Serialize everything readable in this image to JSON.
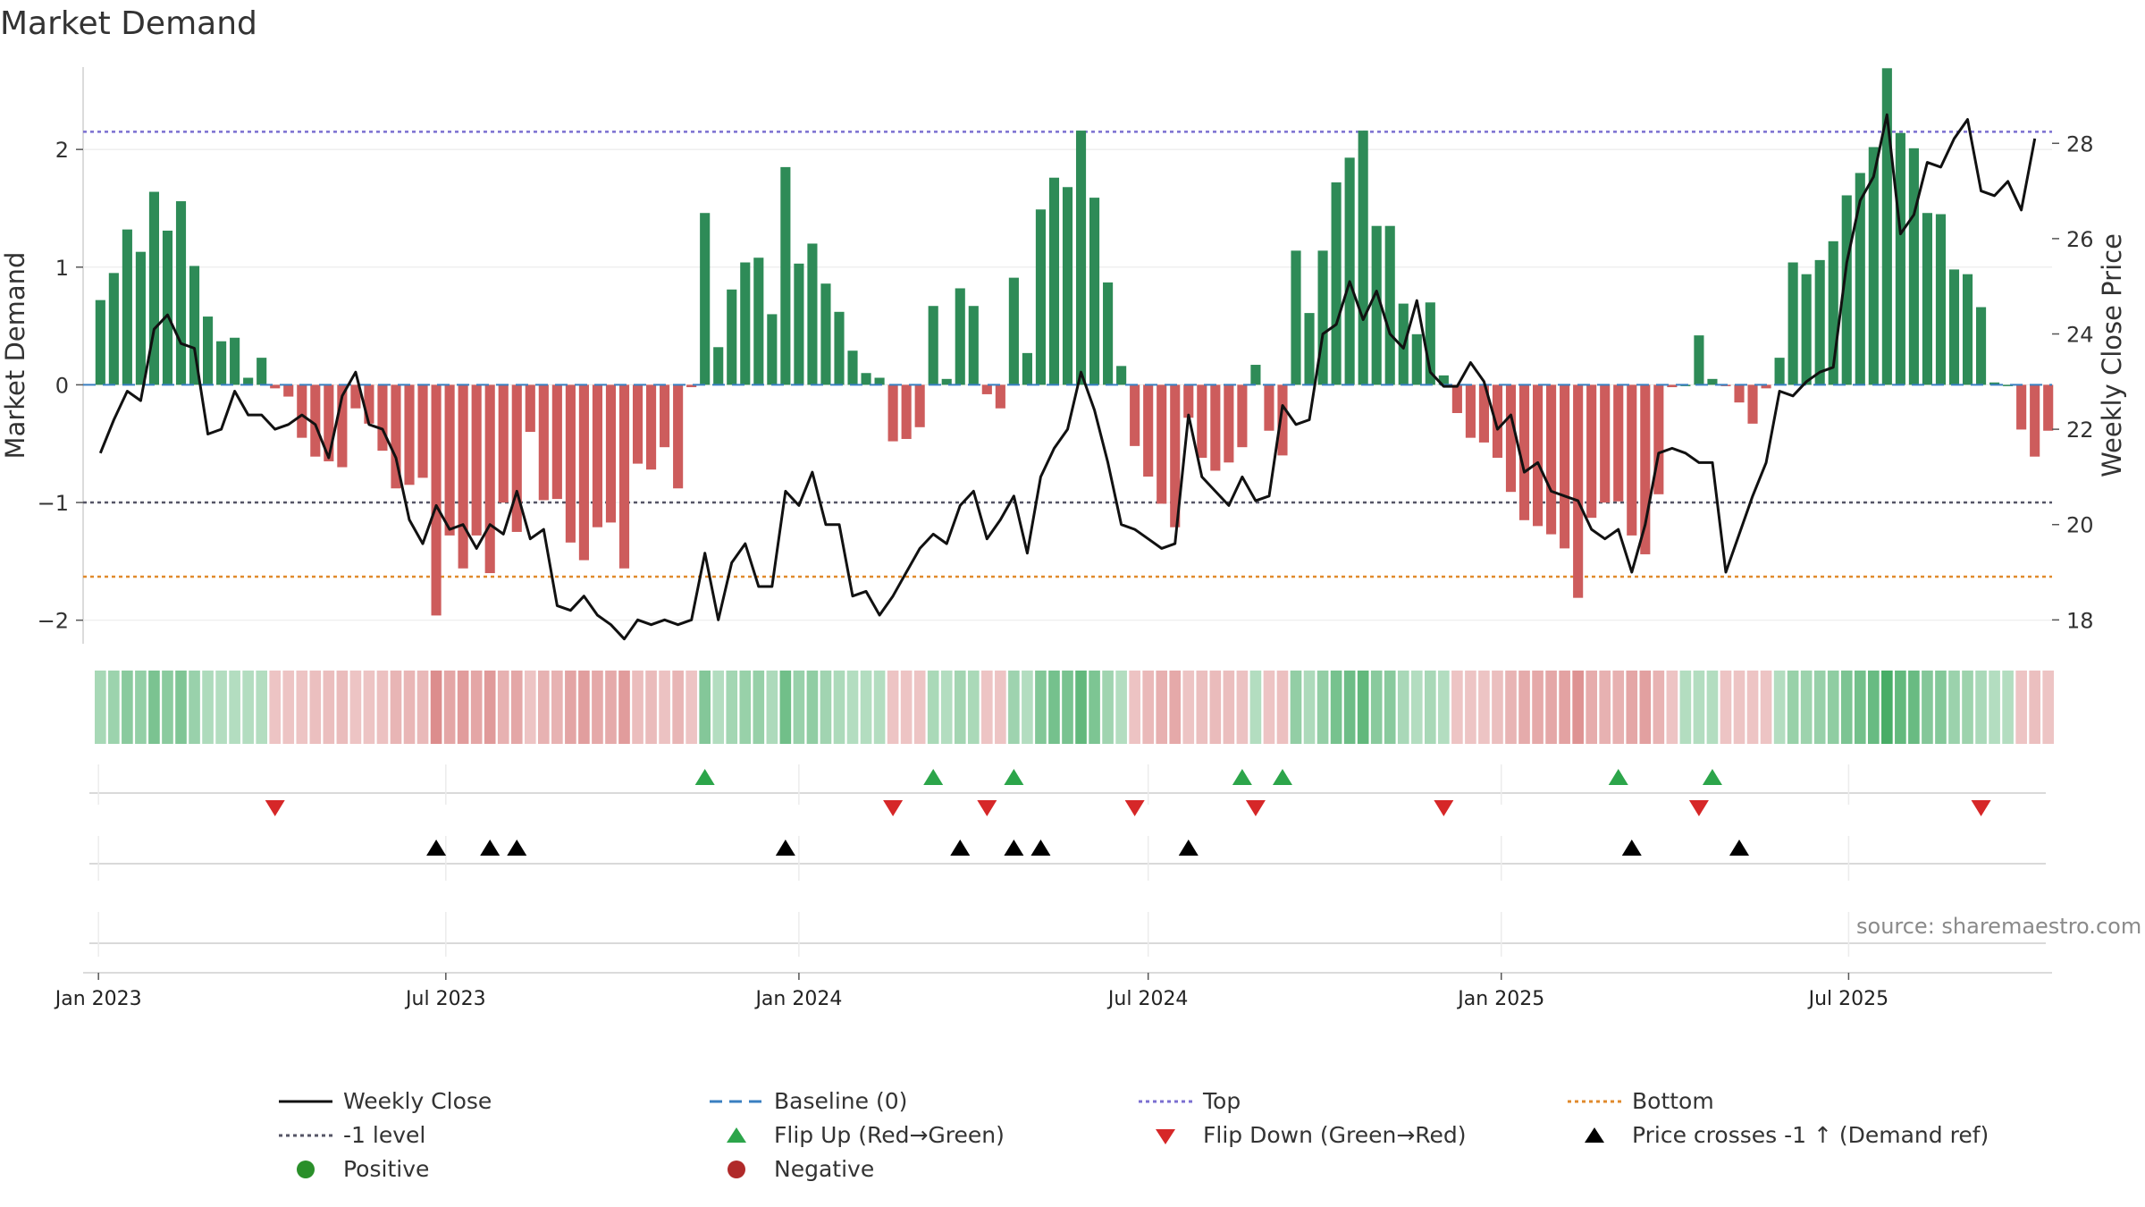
{
  "header": {
    "title": "Market Demand"
  },
  "source_note": "source: sharemaestro.com",
  "colors": {
    "positive_bar": "#2e8b57",
    "negative_bar": "#cd5c5c",
    "price_line": "#111111",
    "top_line": "#7b6fd0",
    "bottom_line": "#e08a2c",
    "level_line": "#555566",
    "baseline": "#3a7fc1",
    "flip_up": "#2ca54a",
    "flip_down": "#d62728",
    "cross_marker": "#000000",
    "positive_dot": "#2a8f2a",
    "negative_dot": "#b02a2a"
  },
  "chart_data": {
    "type": "bar",
    "title": "Market Demand",
    "ylabel": "Market Demand",
    "y2label": "Weekly Close Price",
    "ylim": [
      -2.2,
      2.7
    ],
    "y2lim": [
      17.5,
      29.6
    ],
    "yticks": [
      2,
      1,
      0,
      -1,
      -2
    ],
    "yticklabels": [
      "2",
      "1",
      "0",
      "−1",
      "−2"
    ],
    "y2ticks": [
      28,
      26,
      24,
      22,
      20,
      18
    ],
    "x_start": "2023-01-02",
    "x_range": [
      "2022-12-24",
      "2025-10-15"
    ],
    "x_ticks": [
      {
        "date": "2023-01-01",
        "label": "Jan 2023"
      },
      {
        "date": "2023-07-01",
        "label": "Jul 2023"
      },
      {
        "date": "2024-01-01",
        "label": "Jan 2024"
      },
      {
        "date": "2024-07-01",
        "label": "Jul 2024"
      },
      {
        "date": "2025-01-01",
        "label": "Jan 2025"
      },
      {
        "date": "2025-07-01",
        "label": "Jul 2025"
      }
    ],
    "reference_lines": {
      "top": 2.15,
      "bottom": -1.63,
      "level": -1.0,
      "baseline": 0
    },
    "demand": [
      0.72,
      0.95,
      1.32,
      1.13,
      1.64,
      1.31,
      1.56,
      1.01,
      0.58,
      0.37,
      0.4,
      0.06,
      0.23,
      -0.03,
      -0.1,
      -0.45,
      -0.61,
      -0.65,
      -0.7,
      -0.2,
      -0.33,
      -0.56,
      -0.88,
      -0.85,
      -0.79,
      -1.96,
      -1.28,
      -1.56,
      -1.28,
      -1.6,
      -1.0,
      -1.25,
      -0.4,
      -0.98,
      -0.97,
      -1.34,
      -1.49,
      -1.21,
      -1.17,
      -1.56,
      -0.67,
      -0.72,
      -0.53,
      -0.88,
      -0.02,
      1.46,
      0.32,
      0.81,
      1.04,
      1.08,
      0.6,
      1.85,
      1.03,
      1.2,
      0.86,
      0.62,
      0.29,
      0.1,
      0.06,
      -0.48,
      -0.46,
      -0.36,
      0.67,
      0.05,
      0.82,
      0.67,
      -0.08,
      -0.2,
      0.91,
      0.27,
      1.49,
      1.76,
      1.68,
      2.16,
      1.59,
      0.87,
      0.16,
      -0.52,
      -0.78,
      -1.01,
      -1.21,
      -0.28,
      -0.62,
      -0.73,
      -0.66,
      -0.53,
      0.17,
      -0.39,
      -0.6,
      1.14,
      0.61,
      1.14,
      1.72,
      1.93,
      2.16,
      1.35,
      1.35,
      0.69,
      0.43,
      0.7,
      0.08,
      -0.24,
      -0.45,
      -0.49,
      -0.62,
      -0.91,
      -1.15,
      -1.2,
      -1.27,
      -1.39,
      -1.81,
      -1.13,
      -1.0,
      -0.99,
      -1.28,
      -1.44,
      -0.93,
      -0.02,
      0.0,
      0.42,
      0.05,
      -0.01,
      -0.15,
      -0.33,
      -0.03,
      0.23,
      1.04,
      0.94,
      1.06,
      1.22,
      1.61,
      1.8,
      2.02,
      2.69,
      2.14,
      2.01,
      1.46,
      1.45,
      0.98,
      0.94,
      0.66,
      0.02,
      0.0,
      -0.38,
      -0.61,
      -0.39
    ],
    "close": [
      21.5,
      22.2,
      22.8,
      22.6,
      24.1,
      24.4,
      23.8,
      23.7,
      21.9,
      22.0,
      22.8,
      22.3,
      22.3,
      22.0,
      22.1,
      22.3,
      22.1,
      21.4,
      22.7,
      23.2,
      22.1,
      22.0,
      21.4,
      20.1,
      19.6,
      20.4,
      19.9,
      20.0,
      19.5,
      20.0,
      19.8,
      20.7,
      19.7,
      19.9,
      18.3,
      18.2,
      18.5,
      18.1,
      17.9,
      17.6,
      18.0,
      17.9,
      18.0,
      17.9,
      18.0,
      19.4,
      18.0,
      19.2,
      19.6,
      18.7,
      18.7,
      20.7,
      20.4,
      21.1,
      20.0,
      20.0,
      18.5,
      18.6,
      18.1,
      18.5,
      19.0,
      19.5,
      19.8,
      19.6,
      20.4,
      20.7,
      19.7,
      20.1,
      20.6,
      19.4,
      21.0,
      21.6,
      22.0,
      23.2,
      22.4,
      21.3,
      20.0,
      19.9,
      19.7,
      19.5,
      19.6,
      22.3,
      21.0,
      20.7,
      20.4,
      21.0,
      20.5,
      20.6,
      22.5,
      22.1,
      22.2,
      24.0,
      24.2,
      25.1,
      24.3,
      24.9,
      24.0,
      23.7,
      24.7,
      23.2,
      22.9,
      22.9,
      23.4,
      23.0,
      22.0,
      22.3,
      21.1,
      21.3,
      20.7,
      20.6,
      20.5,
      19.9,
      19.7,
      19.9,
      19.0,
      20.0,
      21.5,
      21.6,
      21.5,
      21.3,
      21.3,
      19.0,
      19.8,
      20.6,
      21.3,
      22.8,
      22.7,
      23.0,
      23.2,
      23.3,
      25.5,
      26.8,
      27.3,
      28.6,
      26.1,
      26.5,
      27.6,
      27.5,
      28.1,
      28.5,
      27.0,
      26.9,
      27.2,
      26.6,
      28.1
    ],
    "flip_up_weeks": [
      45,
      62,
      68,
      85,
      88,
      113,
      120
    ],
    "flip_down_weeks": [
      13,
      59,
      66,
      77,
      86,
      100,
      119,
      140
    ],
    "price_cross_weeks": [
      25,
      29,
      31,
      51,
      64,
      68,
      70,
      81,
      114,
      122
    ]
  },
  "legend": [
    {
      "key": "price",
      "label": "Weekly Close"
    },
    {
      "key": "baseline",
      "label": "Baseline (0)"
    },
    {
      "key": "top",
      "label": "Top"
    },
    {
      "key": "bottom",
      "label": "Bottom"
    },
    {
      "key": "level",
      "label": "-1 level"
    },
    {
      "key": "flip_up",
      "label": "Flip Up (Red→Green)"
    },
    {
      "key": "flip_down",
      "label": "Flip Down (Green→Red)"
    },
    {
      "key": "cross",
      "label": "Price crosses -1 ↑ (Demand ref)"
    },
    {
      "key": "positive",
      "label": "Positive"
    },
    {
      "key": "negative",
      "label": "Negative"
    }
  ]
}
